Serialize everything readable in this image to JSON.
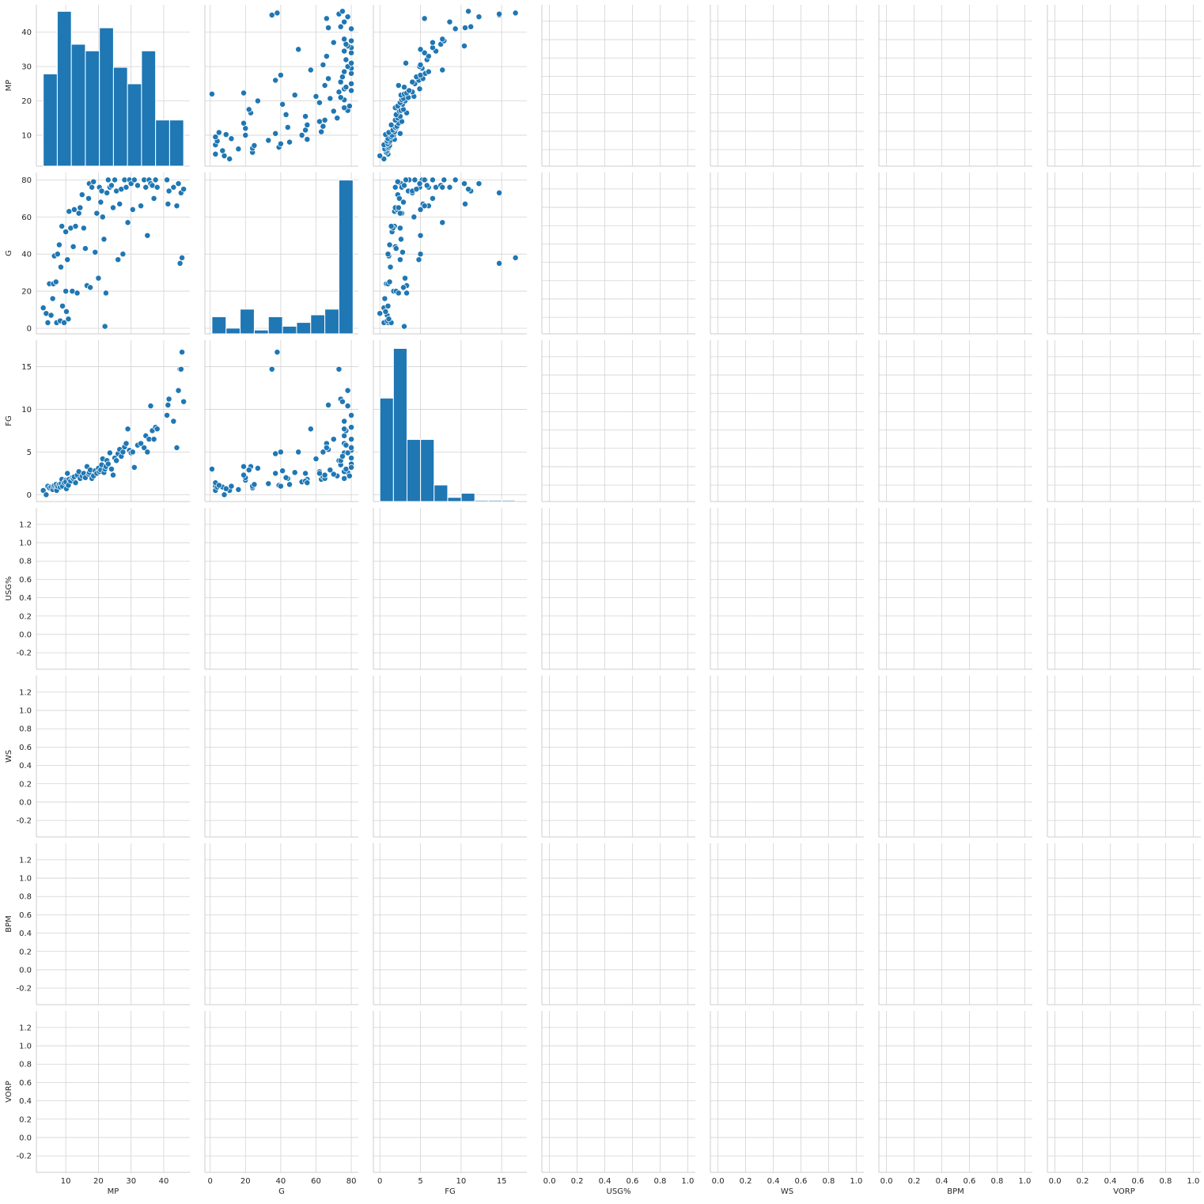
{
  "chart_data": {
    "type": "pairplot",
    "variables": [
      "MP",
      "G",
      "FG",
      "USG%",
      "WS",
      "BPM",
      "VORP"
    ],
    "grid": true,
    "colors": {
      "marks": "#1f77b4",
      "grid": "#d3d3d3",
      "background": "#ffffff"
    },
    "axes": {
      "MP": {
        "range": [
          1,
          48
        ],
        "ticks": [
          10,
          20,
          30,
          40
        ]
      },
      "G": {
        "range": [
          -3,
          84
        ],
        "ticks": [
          0,
          20,
          40,
          60,
          80
        ]
      },
      "FG": {
        "range": [
          -0.8,
          18.1
        ],
        "ticks": [
          0,
          5,
          10,
          15
        ]
      },
      "USG%": {
        "range": [
          -0.055,
          1.055
        ],
        "ticks": [
          0.0,
          0.2,
          0.4,
          0.6,
          0.8,
          1.0
        ]
      },
      "WS": {
        "range": [
          -0.055,
          1.055
        ],
        "ticks": [
          0.0,
          0.2,
          0.4,
          0.6,
          0.8,
          1.0
        ]
      },
      "BPM": {
        "range": [
          -0.055,
          1.055
        ],
        "ticks": [
          0.0,
          0.2,
          0.4,
          0.6,
          0.8,
          1.0
        ]
      },
      "VORP": {
        "range": [
          -0.055,
          1.055
        ],
        "ticks": [
          0.0,
          0.2,
          0.4,
          0.6,
          0.8,
          1.0
        ]
      }
    },
    "empty_y_axis": {
      "range": [
        -0.38,
        1.38
      ],
      "ticks": [
        -0.2,
        0.0,
        0.2,
        0.4,
        0.6,
        0.8,
        1.0,
        1.2
      ]
    },
    "histograms": {
      "MP": {
        "edges": [
          3.1,
          7.4,
          11.7,
          16.0,
          20.3,
          24.6,
          28.9,
          33.2,
          37.5,
          41.8,
          46.1
        ],
        "heights": [
          28,
          47,
          37,
          35,
          42,
          30,
          25,
          35,
          14,
          14
        ],
        "ylim": [
          0,
          49
        ]
      },
      "G": {
        "edges": [
          1,
          9,
          17,
          25,
          33,
          41,
          49,
          57,
          65,
          73,
          81
        ],
        "heights": [
          9,
          3,
          13,
          2,
          9,
          4,
          6,
          10,
          13,
          81
        ],
        "ylim": [
          0,
          85
        ]
      },
      "FG": {
        "edges": [
          0.0,
          1.67,
          3.34,
          5.01,
          6.68,
          8.35,
          10.02,
          11.69,
          13.36,
          15.03,
          16.7
        ],
        "heights": [
          25,
          37,
          15,
          15,
          4,
          1,
          2,
          0.3,
          0.3,
          0.3
        ],
        "ylim": [
          0,
          39
        ]
      }
    },
    "players": [
      {
        "MP": 3.1,
        "G": 11,
        "FG": 0.5
      },
      {
        "MP": 4.0,
        "G": 8,
        "FG": 0.0
      },
      {
        "MP": 4.5,
        "G": 3,
        "FG": 1.0
      },
      {
        "MP": 5.0,
        "G": 24,
        "FG": 0.8
      },
      {
        "MP": 5.5,
        "G": 7,
        "FG": 0.9
      },
      {
        "MP": 6.0,
        "G": 16,
        "FG": 0.6
      },
      {
        "MP": 6.2,
        "G": 24,
        "FG": 1.0
      },
      {
        "MP": 6.5,
        "G": 39,
        "FG": 1.1
      },
      {
        "MP": 7.0,
        "G": 25,
        "FG": 1.2
      },
      {
        "MP": 7.2,
        "G": 3,
        "FG": 0.5
      },
      {
        "MP": 7.5,
        "G": 40,
        "FG": 1.0
      },
      {
        "MP": 8.0,
        "G": 45,
        "FG": 1.2
      },
      {
        "MP": 8.3,
        "G": 4,
        "FG": 0.9
      },
      {
        "MP": 8.5,
        "G": 33,
        "FG": 1.3
      },
      {
        "MP": 8.8,
        "G": 55,
        "FG": 1.8
      },
      {
        "MP": 9.0,
        "G": 12,
        "FG": 1.0
      },
      {
        "MP": 9.5,
        "G": 3,
        "FG": 1.4
      },
      {
        "MP": 10.0,
        "G": 20,
        "FG": 1.7
      },
      {
        "MP": 10.0,
        "G": 52,
        "FG": 1.5
      },
      {
        "MP": 10.2,
        "G": 9,
        "FG": 0.7
      },
      {
        "MP": 10.5,
        "G": 37,
        "FG": 2.5
      },
      {
        "MP": 10.8,
        "G": 5,
        "FG": 1.1
      },
      {
        "MP": 11.0,
        "G": 63,
        "FG": 1.8
      },
      {
        "MP": 11.5,
        "G": 54,
        "FG": 1.6
      },
      {
        "MP": 12.0,
        "G": 20,
        "FG": 2.0
      },
      {
        "MP": 12.3,
        "G": 44,
        "FG": 1.9
      },
      {
        "MP": 12.6,
        "G": 64,
        "FG": 2.1
      },
      {
        "MP": 13.0,
        "G": 55,
        "FG": 1.4
      },
      {
        "MP": 13.5,
        "G": 19,
        "FG": 2.3
      },
      {
        "MP": 14.0,
        "G": 62,
        "FG": 2.7
      },
      {
        "MP": 14.4,
        "G": 65,
        "FG": 1.9
      },
      {
        "MP": 15.0,
        "G": 72,
        "FG": 2.2
      },
      {
        "MP": 15.5,
        "G": 54,
        "FG": 2.5
      },
      {
        "MP": 16.0,
        "G": 43,
        "FG": 2.0
      },
      {
        "MP": 16.5,
        "G": 23,
        "FG": 3.3
      },
      {
        "MP": 17.0,
        "G": 70,
        "FG": 2.4
      },
      {
        "MP": 17.2,
        "G": 78,
        "FG": 2.6
      },
      {
        "MP": 17.5,
        "G": 22,
        "FG": 2.9
      },
      {
        "MP": 18.0,
        "G": 76,
        "FG": 1.9
      },
      {
        "MP": 18.5,
        "G": 79,
        "FG": 2.2
      },
      {
        "MP": 19.0,
        "G": 41,
        "FG": 2.8
      },
      {
        "MP": 19.5,
        "G": 62,
        "FG": 2.5
      },
      {
        "MP": 20.0,
        "G": 27,
        "FG": 3.1
      },
      {
        "MP": 20.3,
        "G": 76,
        "FG": 2.7
      },
      {
        "MP": 20.7,
        "G": 68,
        "FG": 2.9
      },
      {
        "MP": 21.0,
        "G": 74,
        "FG": 3.5
      },
      {
        "MP": 21.3,
        "G": 60,
        "FG": 4.2
      },
      {
        "MP": 21.7,
        "G": 48,
        "FG": 2.6
      },
      {
        "MP": 22.0,
        "G": 1,
        "FG": 3.0
      },
      {
        "MP": 22.3,
        "G": 19,
        "FG": 3.3
      },
      {
        "MP": 22.6,
        "G": 73,
        "FG": 4.0
      },
      {
        "MP": 23.0,
        "G": 80,
        "FG": 3.6
      },
      {
        "MP": 23.5,
        "G": 76,
        "FG": 4.9
      },
      {
        "MP": 24.0,
        "G": 77,
        "FG": 3.0
      },
      {
        "MP": 24.5,
        "G": 65,
        "FG": 2.3
      },
      {
        "MP": 25.0,
        "G": 80,
        "FG": 4.3
      },
      {
        "MP": 25.5,
        "G": 74,
        "FG": 4.0
      },
      {
        "MP": 26.0,
        "G": 37,
        "FG": 4.8
      },
      {
        "MP": 26.5,
        "G": 67,
        "FG": 5.3
      },
      {
        "MP": 27.0,
        "G": 75,
        "FG": 4.5
      },
      {
        "MP": 27.5,
        "G": 40,
        "FG": 5.0
      },
      {
        "MP": 28.0,
        "G": 80,
        "FG": 5.6
      },
      {
        "MP": 28.5,
        "G": 76,
        "FG": 6.0
      },
      {
        "MP": 29.0,
        "G": 57,
        "FG": 7.7
      },
      {
        "MP": 29.5,
        "G": 80,
        "FG": 5.2
      },
      {
        "MP": 30.0,
        "G": 78,
        "FG": 4.9
      },
      {
        "MP": 30.5,
        "G": 64,
        "FG": 5.0
      },
      {
        "MP": 31.0,
        "G": 80,
        "FG": 3.2
      },
      {
        "MP": 32.0,
        "G": 77,
        "FG": 5.8
      },
      {
        "MP": 33.0,
        "G": 66,
        "FG": 6.0
      },
      {
        "MP": 34.0,
        "G": 80,
        "FG": 5.5
      },
      {
        "MP": 34.5,
        "G": 76,
        "FG": 6.9
      },
      {
        "MP": 35.0,
        "G": 50,
        "FG": 5.0
      },
      {
        "MP": 35.5,
        "G": 80,
        "FG": 6.5
      },
      {
        "MP": 36.0,
        "G": 78,
        "FG": 10.4
      },
      {
        "MP": 36.5,
        "G": 77,
        "FG": 7.5
      },
      {
        "MP": 37.0,
        "G": 70,
        "FG": 6.5
      },
      {
        "MP": 37.5,
        "G": 80,
        "FG": 7.9
      },
      {
        "MP": 38.0,
        "G": 76,
        "FG": 7.7
      },
      {
        "MP": 41.0,
        "G": 80,
        "FG": 9.3
      },
      {
        "MP": 41.3,
        "G": 67,
        "FG": 10.5
      },
      {
        "MP": 41.6,
        "G": 74,
        "FG": 11.2
      },
      {
        "MP": 43.0,
        "G": 76,
        "FG": 8.6
      },
      {
        "MP": 44.0,
        "G": 66,
        "FG": 5.5
      },
      {
        "MP": 44.5,
        "G": 78,
        "FG": 12.2
      },
      {
        "MP": 45.0,
        "G": 35,
        "FG": 14.7
      },
      {
        "MP": 45.3,
        "G": 73,
        "FG": 14.7
      },
      {
        "MP": 45.6,
        "G": 38,
        "FG": 16.7
      },
      {
        "MP": 46.1,
        "G": 75,
        "FG": 10.9
      }
    ]
  }
}
